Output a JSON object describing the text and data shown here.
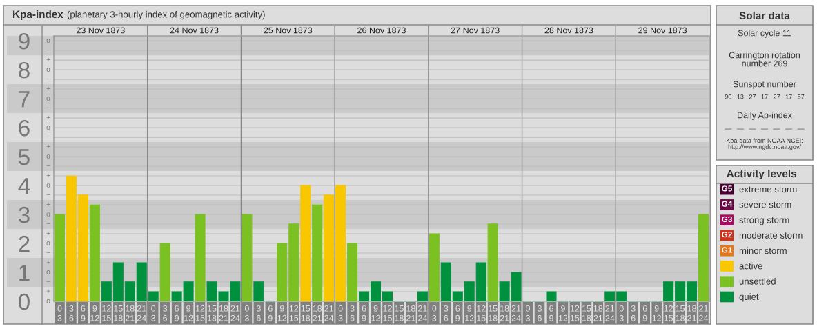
{
  "chart_data": [
    {
      "type": "bar",
      "title": "Kpa-index",
      "subtitle": "(planetary 3-hourly index of geomagnetic activity)",
      "categories": [
        "0\n3",
        "3\n6",
        "6\n9",
        "9\n12",
        "12\n15",
        "15\n18",
        "18\n21",
        "21\n24",
        "0\n3",
        "3\n6",
        "6\n9",
        "9\n12",
        "12\n15",
        "15\n18",
        "18\n21",
        "21\n24",
        "0\n3",
        "3\n6",
        "6\n9",
        "9\n12",
        "12\n15",
        "15\n18",
        "18\n21",
        "21\n24",
        "0\n3",
        "3\n6",
        "6\n9",
        "9\n12",
        "12\n15",
        "15\n18",
        "18\n21",
        "21\n24",
        "0\n3",
        "3\n6",
        "6\n9",
        "9\n12",
        "12\n15",
        "15\n18",
        "18\n21",
        "21\n24",
        "0\n3",
        "3\n6",
        "6\n9",
        "9\n12",
        "12\n15",
        "15\n18",
        "18\n21",
        "21\n24",
        "0\n3",
        "3\n6",
        "6\n9",
        "9\n12",
        "12\n15",
        "15\n18",
        "18\n21",
        "21\n24"
      ],
      "series": [
        {
          "name": "extreme storm",
          "color": "#4a0032",
          "values": [
            null,
            null,
            null,
            null,
            null,
            null,
            null,
            null,
            null,
            null,
            null,
            null,
            null,
            null,
            null,
            null,
            null,
            null,
            null,
            null,
            null,
            null,
            null,
            null,
            null,
            null,
            null,
            null,
            null,
            null,
            null,
            null,
            null,
            null,
            null,
            null,
            null,
            null,
            null,
            null,
            null,
            null,
            null,
            null,
            null,
            null,
            null,
            null,
            null,
            null,
            null,
            null,
            null,
            null,
            null,
            null
          ]
        },
        {
          "name": "severe storm",
          "color": "#6d0645",
          "values": [
            null,
            null,
            null,
            null,
            null,
            null,
            null,
            null,
            null,
            null,
            null,
            null,
            null,
            null,
            null,
            null,
            null,
            null,
            null,
            null,
            null,
            null,
            null,
            null,
            null,
            null,
            null,
            null,
            null,
            null,
            null,
            null,
            null,
            null,
            null,
            null,
            null,
            null,
            null,
            null,
            null,
            null,
            null,
            null,
            null,
            null,
            null,
            null,
            null,
            null,
            null,
            null,
            null,
            null,
            null,
            null
          ]
        },
        {
          "name": "strong storm",
          "color": "#a80c62",
          "values": [
            null,
            null,
            null,
            null,
            null,
            null,
            null,
            null,
            null,
            null,
            null,
            null,
            null,
            null,
            null,
            null,
            null,
            null,
            null,
            null,
            null,
            null,
            null,
            null,
            null,
            null,
            null,
            null,
            null,
            null,
            null,
            null,
            null,
            null,
            null,
            null,
            null,
            null,
            null,
            null,
            null,
            null,
            null,
            null,
            null,
            null,
            null,
            null,
            null,
            null,
            null,
            null,
            null,
            null,
            null,
            null
          ]
        },
        {
          "name": "moderate storm",
          "color": "#d1301a",
          "values": [
            null,
            null,
            null,
            null,
            null,
            null,
            null,
            null,
            null,
            null,
            null,
            null,
            null,
            null,
            null,
            null,
            null,
            null,
            null,
            null,
            null,
            null,
            null,
            null,
            null,
            null,
            null,
            null,
            null,
            null,
            null,
            null,
            null,
            null,
            null,
            null,
            null,
            null,
            null,
            null,
            null,
            null,
            null,
            null,
            null,
            null,
            null,
            null,
            null,
            null,
            null,
            null,
            null,
            null,
            null,
            null
          ]
        },
        {
          "name": "minor storm",
          "color": "#e6761a",
          "values": [
            null,
            null,
            null,
            null,
            null,
            null,
            null,
            null,
            null,
            null,
            null,
            null,
            null,
            null,
            null,
            null,
            null,
            null,
            null,
            null,
            null,
            null,
            null,
            null,
            null,
            null,
            null,
            null,
            null,
            null,
            null,
            null,
            null,
            null,
            null,
            null,
            null,
            null,
            null,
            null,
            null,
            null,
            null,
            null,
            null,
            null,
            null,
            null,
            null,
            null,
            null,
            null,
            null,
            null,
            null,
            null
          ]
        },
        {
          "name": "active",
          "color": "#f9c700",
          "values": [
            null,
            4.33,
            3.67,
            null,
            null,
            null,
            null,
            null,
            null,
            null,
            null,
            null,
            null,
            null,
            null,
            null,
            null,
            null,
            null,
            null,
            null,
            4,
            null,
            3.67,
            4,
            null,
            null,
            null,
            null,
            null,
            null,
            null,
            null,
            null,
            null,
            null,
            null,
            null,
            null,
            null,
            null,
            null,
            null,
            null,
            null,
            null,
            null,
            null,
            null,
            null,
            null,
            null,
            null,
            null,
            null,
            null
          ]
        },
        {
          "name": "unsettled",
          "color": "#7bc121",
          "values": [
            3,
            null,
            null,
            3.33,
            null,
            null,
            null,
            null,
            null,
            2,
            null,
            null,
            3,
            null,
            null,
            null,
            3,
            null,
            null,
            2,
            2.67,
            null,
            3.33,
            null,
            null,
            2,
            null,
            null,
            null,
            null,
            null,
            null,
            2.33,
            null,
            null,
            null,
            null,
            2.67,
            null,
            null,
            null,
            null,
            null,
            null,
            null,
            null,
            null,
            null,
            null,
            null,
            null,
            null,
            null,
            null,
            null,
            3
          ]
        },
        {
          "name": "quiet",
          "color": "#00913f",
          "values": [
            null,
            null,
            null,
            null,
            0.67,
            1.33,
            0.67,
            1.33,
            0.33,
            null,
            0.33,
            0.67,
            null,
            0.67,
            0.33,
            0.67,
            null,
            0.67,
            0,
            null,
            null,
            null,
            null,
            null,
            null,
            null,
            0.33,
            0.67,
            0.33,
            0,
            0,
            0.33,
            null,
            1.33,
            0.33,
            0.67,
            1.33,
            null,
            0.67,
            1,
            0,
            0,
            0.33,
            0,
            0,
            0,
            0,
            0.33,
            0.33,
            0,
            0,
            0,
            0.67,
            0.67,
            0.67,
            null
          ]
        }
      ],
      "ylim": [
        0,
        9.17
      ],
      "yticks": [
        0,
        1,
        2,
        3,
        4,
        5,
        6,
        7,
        8,
        9
      ],
      "bands": [
        {
          "axis": "y",
          "from": 0.5,
          "to": 1.5,
          "color": "#cacaca"
        },
        {
          "axis": "y",
          "from": 2.5,
          "to": 3.5,
          "color": "#cacaca"
        },
        {
          "axis": "y",
          "from": 4.5,
          "to": 5.5,
          "color": "#cacaca"
        },
        {
          "axis": "y",
          "from": 6.5,
          "to": 7.5,
          "color": "#cacaca"
        },
        {
          "axis": "y",
          "from": 8.5,
          "to": 9.17,
          "color": "#cacaca"
        }
      ],
      "grid": "y",
      "legend": "right",
      "legend_title": "Activity levels",
      "annotations": [
        "23 Nov 1873",
        "24 Nov 1873",
        "25 Nov 1873",
        "26 Nov 1873",
        "27 Nov 1873",
        "28 Nov 1873",
        "29 Nov 1873",
        "G5",
        "G4",
        "G3",
        "G2",
        "G1",
        "o",
        "+",
        "−",
        "o",
        "+",
        "−",
        "o",
        "+",
        "−",
        "o",
        "+",
        "−",
        "o",
        "+",
        "−",
        "o",
        "+",
        "−",
        "o",
        "+",
        "−",
        "o",
        "+",
        "−",
        "o",
        "+",
        "−",
        "o"
      ]
    },
    {
      "type": "other",
      "title": "Solar data",
      "annotations": [
        "Solar cycle 11",
        "Carrington rotation\nnumber 269",
        "Sunspot number",
        "90   13   27   17   27   17   57",
        "Daily Ap-index",
        "––   ––   ––   ––   ––   ––   ––",
        "Kpa-data from NOAA NCEI:\nhttp://www.ngdc.noaa.gov/"
      ]
    }
  ]
}
